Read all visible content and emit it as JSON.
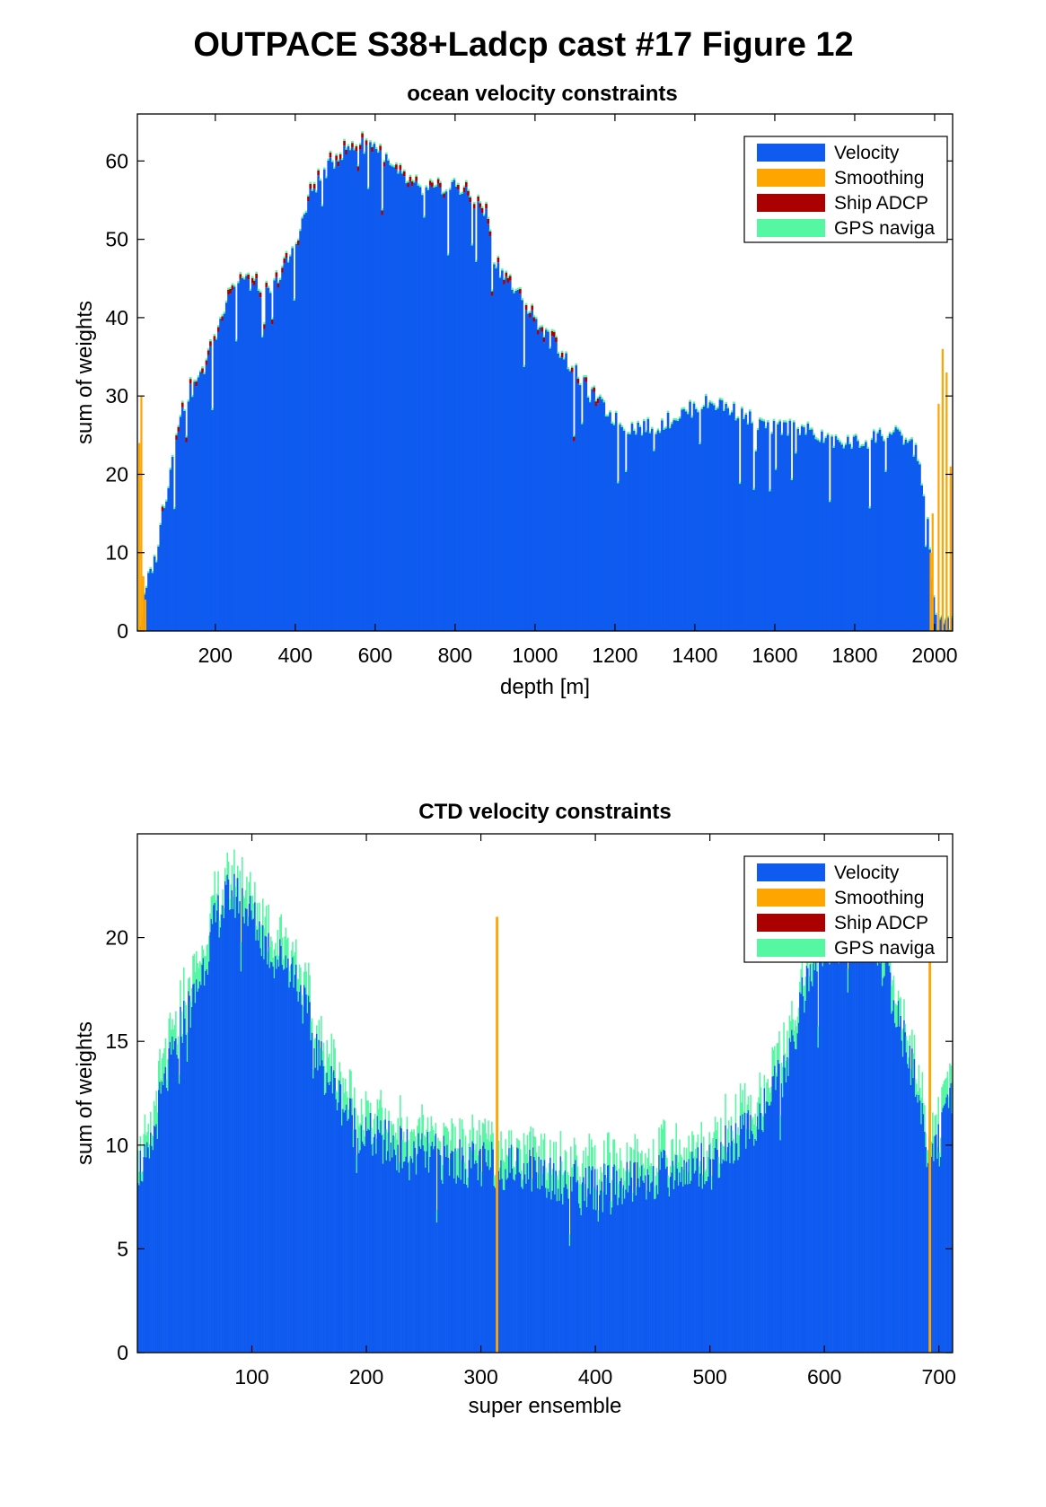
{
  "figure": {
    "title": "OUTPACE S38+Ladcp cast #17  Figure 12"
  },
  "colors": {
    "velocity": "#0F5BF0",
    "smoothing": "#FFA500",
    "ship_adcp": "#AA0000",
    "gps": "#55F7A3"
  },
  "chart_data": [
    {
      "type": "bar",
      "stacked": true,
      "title": "ocean velocity constraints",
      "xlabel": "depth [m]",
      "ylabel": "sum of weights",
      "xlim": [
        5,
        2045
      ],
      "ylim": [
        0,
        66
      ],
      "xticks": [
        200,
        400,
        600,
        800,
        1000,
        1200,
        1400,
        1600,
        1800,
        2000
      ],
      "yticks": [
        0,
        10,
        20,
        30,
        40,
        50,
        60
      ],
      "grid": false,
      "legend_position": "top-right",
      "legend": [
        "Velocity",
        "Smoothing",
        "Ship ADCP",
        "GPS naviga"
      ],
      "depth_profile_velocity": [
        [
          10,
          0
        ],
        [
          20,
          3
        ],
        [
          30,
          6
        ],
        [
          40,
          8
        ],
        [
          50,
          9
        ],
        [
          60,
          12
        ],
        [
          70,
          16
        ],
        [
          80,
          18
        ],
        [
          100,
          25
        ],
        [
          130,
          30
        ],
        [
          160,
          32
        ],
        [
          200,
          37
        ],
        [
          230,
          43
        ],
        [
          260,
          45
        ],
        [
          300,
          44
        ],
        [
          330,
          43
        ],
        [
          360,
          45
        ],
        [
          400,
          49
        ],
        [
          440,
          56
        ],
        [
          480,
          59
        ],
        [
          520,
          61
        ],
        [
          560,
          62
        ],
        [
          600,
          62
        ],
        [
          640,
          59
        ],
        [
          680,
          57
        ],
        [
          720,
          56
        ],
        [
          760,
          56
        ],
        [
          800,
          57
        ],
        [
          840,
          55
        ],
        [
          880,
          53
        ],
        [
          900,
          47
        ],
        [
          940,
          44
        ],
        [
          980,
          41
        ],
        [
          1020,
          38
        ],
        [
          1060,
          36
        ],
        [
          1100,
          33
        ],
        [
          1140,
          30
        ],
        [
          1180,
          28
        ],
        [
          1220,
          26
        ],
        [
          1260,
          26
        ],
        [
          1300,
          26
        ],
        [
          1340,
          27
        ],
        [
          1380,
          28
        ],
        [
          1420,
          29
        ],
        [
          1460,
          29
        ],
        [
          1500,
          28
        ],
        [
          1540,
          27
        ],
        [
          1580,
          26
        ],
        [
          1620,
          26
        ],
        [
          1660,
          26
        ],
        [
          1700,
          25
        ],
        [
          1740,
          24
        ],
        [
          1780,
          24
        ],
        [
          1820,
          24
        ],
        [
          1860,
          25
        ],
        [
          1900,
          25
        ],
        [
          1940,
          24
        ],
        [
          1960,
          22
        ],
        [
          1980,
          15
        ],
        [
          1995,
          5
        ],
        [
          2005,
          1
        ],
        [
          2025,
          1
        ],
        [
          2040,
          1
        ]
      ],
      "smoothing_spikes": [
        [
          10,
          24
        ],
        [
          15,
          30
        ],
        [
          20,
          7
        ],
        [
          25,
          4
        ],
        [
          1990,
          10
        ],
        [
          1995,
          15
        ],
        [
          2010,
          29
        ],
        [
          2020,
          36
        ],
        [
          2030,
          33
        ],
        [
          2040,
          21
        ]
      ],
      "series": [
        {
          "name": "Velocity"
        },
        {
          "name": "Smoothing"
        },
        {
          "name": "Ship ADCP"
        },
        {
          "name": "GPS naviga"
        }
      ]
    },
    {
      "type": "bar",
      "stacked": true,
      "title": "CTD velocity constraints",
      "xlabel": "super ensemble",
      "ylabel": "sum of weights",
      "xlim": [
        0,
        712
      ],
      "ylim": [
        0,
        25
      ],
      "xticks": [
        100,
        200,
        300,
        400,
        500,
        600,
        700
      ],
      "yticks": [
        0,
        5,
        10,
        15,
        20
      ],
      "grid": false,
      "legend_position": "top-right",
      "legend": [
        "Velocity",
        "Smoothing",
        "Ship ADCP",
        "GPS naviga"
      ],
      "ensemble_profile_velocity": [
        [
          1,
          9
        ],
        [
          10,
          9
        ],
        [
          20,
          12
        ],
        [
          30,
          14
        ],
        [
          40,
          16
        ],
        [
          50,
          17
        ],
        [
          60,
          19
        ],
        [
          70,
          21
        ],
        [
          80,
          22
        ],
        [
          90,
          22
        ],
        [
          100,
          21
        ],
        [
          110,
          20
        ],
        [
          120,
          19
        ],
        [
          130,
          19
        ],
        [
          140,
          18
        ],
        [
          150,
          16
        ],
        [
          160,
          14
        ],
        [
          170,
          13
        ],
        [
          180,
          12
        ],
        [
          190,
          11
        ],
        [
          200,
          10.5
        ],
        [
          220,
          10
        ],
        [
          240,
          9.6
        ],
        [
          260,
          9.4
        ],
        [
          280,
          9.2
        ],
        [
          300,
          9
        ],
        [
          320,
          9
        ],
        [
          340,
          9
        ],
        [
          360,
          8.6
        ],
        [
          380,
          8.2
        ],
        [
          400,
          8
        ],
        [
          420,
          8
        ],
        [
          440,
          8.4
        ],
        [
          460,
          8.6
        ],
        [
          480,
          8.8
        ],
        [
          500,
          9.2
        ],
        [
          520,
          10
        ],
        [
          540,
          11
        ],
        [
          560,
          13
        ],
        [
          570,
          14
        ],
        [
          580,
          17
        ],
        [
          590,
          18.5
        ],
        [
          600,
          19.5
        ],
        [
          620,
          20
        ],
        [
          640,
          20
        ],
        [
          650,
          19
        ],
        [
          660,
          17
        ],
        [
          670,
          15
        ],
        [
          680,
          13
        ],
        [
          690,
          10
        ],
        [
          700,
          10
        ],
        [
          712,
          12
        ]
      ],
      "smoothing_spikes": [
        [
          315,
          21
        ],
        [
          693,
          21
        ]
      ],
      "series": [
        {
          "name": "Velocity"
        },
        {
          "name": "Smoothing"
        },
        {
          "name": "Ship ADCP"
        },
        {
          "name": "GPS naviga"
        }
      ]
    }
  ]
}
